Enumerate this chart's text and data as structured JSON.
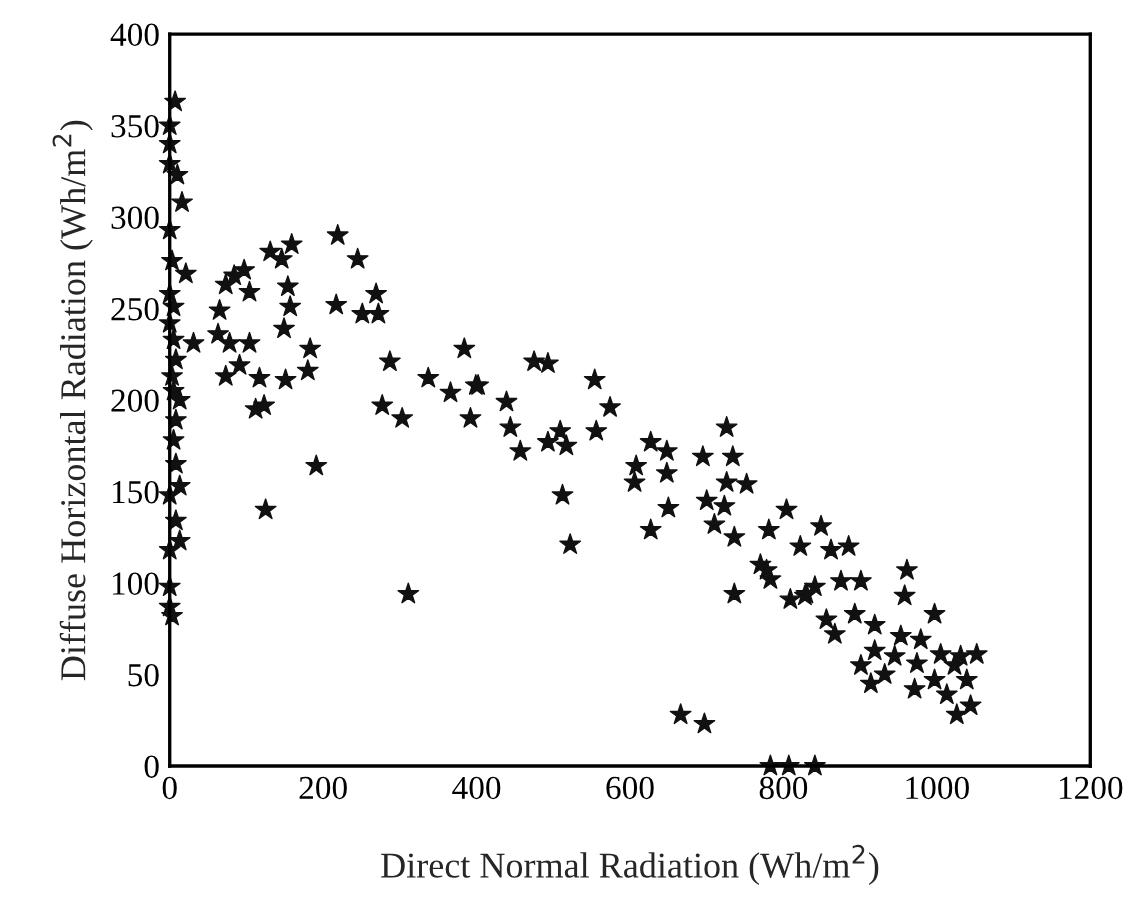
{
  "chart_data": {
    "type": "scatter",
    "xlabel": "Direct Normal Radiation (Wh/m$^{2}$)",
    "ylabel": "Diffuse Horizontal Radiation (Wh/m$^{2}$)",
    "xlim": [
      0,
      1200
    ],
    "ylim": [
      0,
      400
    ],
    "xticks": [
      0,
      200,
      400,
      600,
      800,
      1000,
      1200
    ],
    "yticks": [
      0,
      50,
      100,
      150,
      200,
      250,
      300,
      350,
      400
    ],
    "grid": false,
    "marker": "star",
    "series": [
      {
        "color": "#111111",
        "x": [
          7,
          0,
          0,
          0,
          10,
          16,
          0,
          3,
          21,
          0,
          5,
          0,
          5,
          31,
          8,
          3,
          5,
          13,
          8,
          5,
          8,
          13,
          0,
          8,
          13,
          0,
          0,
          0,
          3,
          65,
          63,
          73,
          78,
          73,
          84,
          97,
          104,
          91,
          104,
          117,
          112,
          123,
          125,
          131,
          146,
          159,
          154,
          157,
          149,
          151,
          183,
          180,
          191,
          219,
          245,
          217,
          251,
          269,
          272,
          287,
          277,
          303,
          311,
          337,
          366,
          384,
          392,
          399,
          402,
          439,
          444,
          457,
          475,
          493,
          554,
          574,
          556,
          509,
          493,
          517,
          512,
          522,
          627,
          648,
          608,
          606,
          648,
          650,
          627,
          726,
          695,
          734,
          726,
          752,
          700,
          723,
          710,
          736,
          736,
          804,
          781,
          822,
          770,
          783,
          830,
          666,
          697,
          783,
          807,
          841,
          849,
          862,
          885,
          778,
          828,
          875,
          901,
          961,
          958,
          856,
          893,
          919,
          997,
          953,
          901,
          914,
          932,
          979,
          974,
          997,
          1023,
          1039,
          1013,
          1044,
          1026,
          1052,
          841,
          809,
          945,
          919,
          867,
          1005,
          1031,
          971
        ],
        "values": [
          363,
          350,
          340,
          329,
          323,
          308,
          293,
          276,
          269,
          258,
          251,
          242,
          233,
          231,
          222,
          213,
          205,
          200,
          189,
          178,
          165,
          153,
          148,
          134,
          123,
          118,
          98,
          87,
          82,
          249,
          236,
          213,
          231,
          263,
          268,
          271,
          259,
          219,
          231,
          212,
          195,
          197,
          140,
          281,
          277,
          285,
          262,
          251,
          239,
          211,
          228,
          216,
          164,
          290,
          277,
          252,
          247,
          258,
          247,
          221,
          197,
          190,
          94,
          212,
          204,
          228,
          190,
          208,
          208,
          199,
          185,
          172,
          221,
          220,
          211,
          196,
          183,
          183,
          177,
          175,
          148,
          121,
          177,
          172,
          164,
          155,
          160,
          141,
          129,
          185,
          169,
          169,
          155,
          154,
          145,
          142,
          132,
          125,
          94,
          140,
          129,
          120,
          110,
          102,
          94,
          28,
          23,
          0,
          0,
          0,
          131,
          118,
          120,
          107,
          93,
          101,
          101,
          107,
          93,
          80,
          83,
          77,
          83,
          71,
          55,
          45,
          50,
          69,
          56,
          47,
          55,
          47,
          39,
          33,
          28,
          61,
          98,
          91,
          60,
          63,
          72,
          61,
          60,
          42
        ]
      }
    ]
  }
}
